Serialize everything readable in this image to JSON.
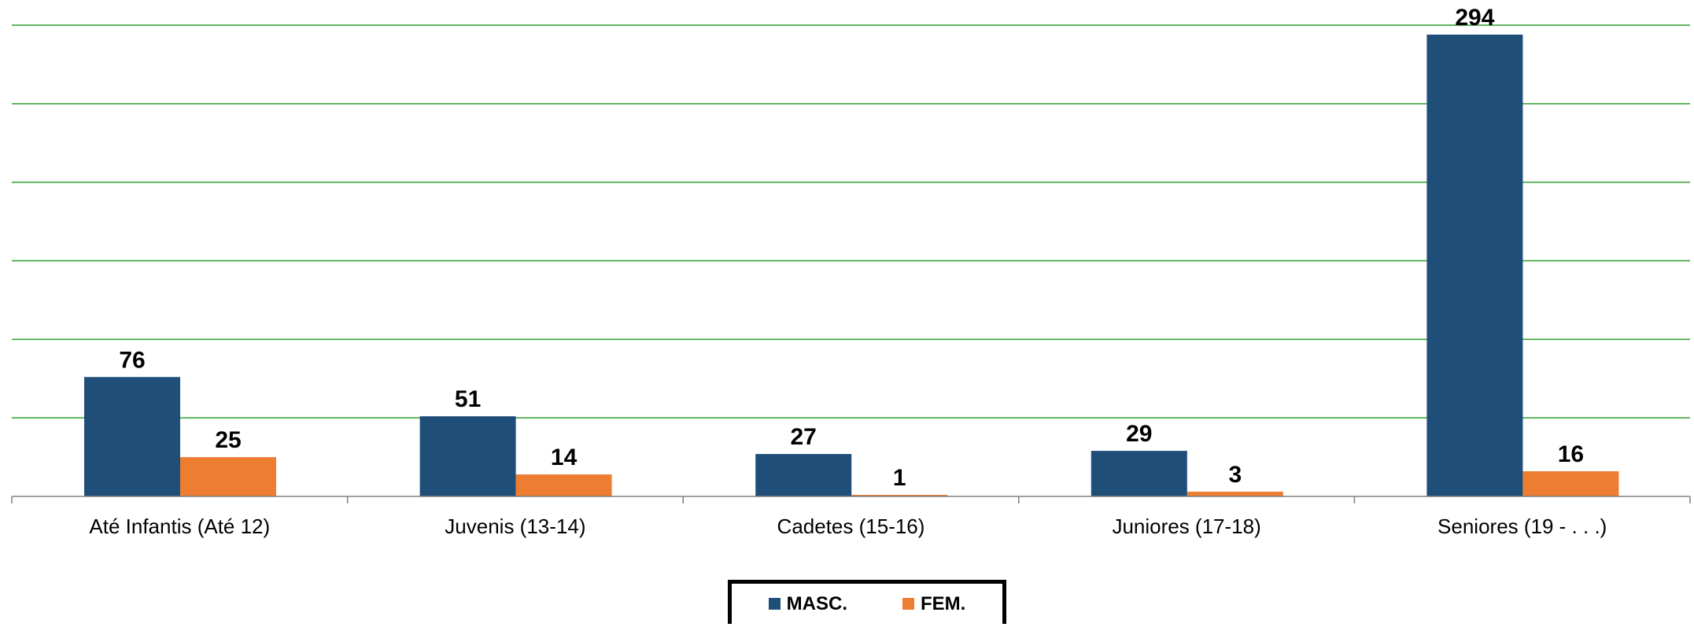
{
  "chart_data": {
    "type": "bar",
    "categories": [
      "Até Infantis (Até 12)",
      "Juvenis (13-14)",
      "Cadetes (15-16)",
      "Juniores (17-18)",
      "Seniores (19 - . . .)"
    ],
    "series": [
      {
        "name": "MASC.",
        "values": [
          76,
          51,
          27,
          29,
          294
        ],
        "color": "#1f4e79"
      },
      {
        "name": "FEM.",
        "values": [
          25,
          14,
          1,
          3,
          16
        ],
        "color": "#ed7d31"
      }
    ],
    "ylim": [
      0,
      300
    ],
    "grid": true,
    "grid_color": "#2e9e2e",
    "legend_position": "bottom"
  }
}
